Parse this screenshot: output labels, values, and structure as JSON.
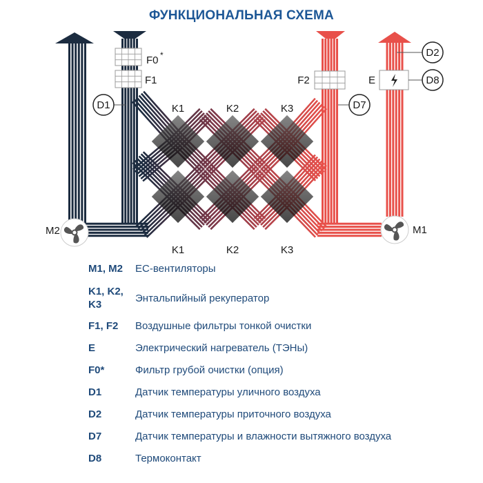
{
  "title": "ФУНКЦИОНАЛЬНАЯ СХЕМА",
  "colors": {
    "title": "#1d5796",
    "legend_text": "#1f4a7a",
    "cold_duct": "#1c2c40",
    "warm_duct": "#e8504a",
    "fan_blades": "#555555"
  },
  "diagram": {
    "labels": {
      "F0": "F0",
      "F0_star": "*",
      "F1": "F1",
      "F2": "F2",
      "E": "E",
      "D1": "D1",
      "D2": "D2",
      "D7": "D7",
      "D8": "D8",
      "M1": "M1",
      "M2": "M2",
      "K_top": [
        "K1",
        "K2",
        "K3"
      ],
      "K_bottom": [
        "K1",
        "K2",
        "K3"
      ]
    },
    "icons": {
      "fan": "fan-icon",
      "heater": "lightning-icon",
      "filter": "grid-filter-icon"
    }
  },
  "legend": [
    {
      "code": "M1, M2",
      "desc": "ЕС-вентиляторы"
    },
    {
      "code": "K1, K2, K3",
      "desc": "Энтальпийный рекуператор"
    },
    {
      "code": "F1, F2",
      "desc": "Воздушные фильтры тонкой очистки"
    },
    {
      "code": "E",
      "desc": "Электрический нагреватель (ТЭНы)"
    },
    {
      "code": "F0*",
      "desc": "Фильтр грубой очистки (опция)"
    },
    {
      "code": "D1",
      "desc": "Датчик температуры уличного воздуха"
    },
    {
      "code": "D2",
      "desc": "Датчик температуры приточного воздуха"
    },
    {
      "code": "D7",
      "desc": "Датчик температуры и влажности вытяжного воздуха"
    },
    {
      "code": "D8",
      "desc": "Термоконтакт"
    }
  ]
}
